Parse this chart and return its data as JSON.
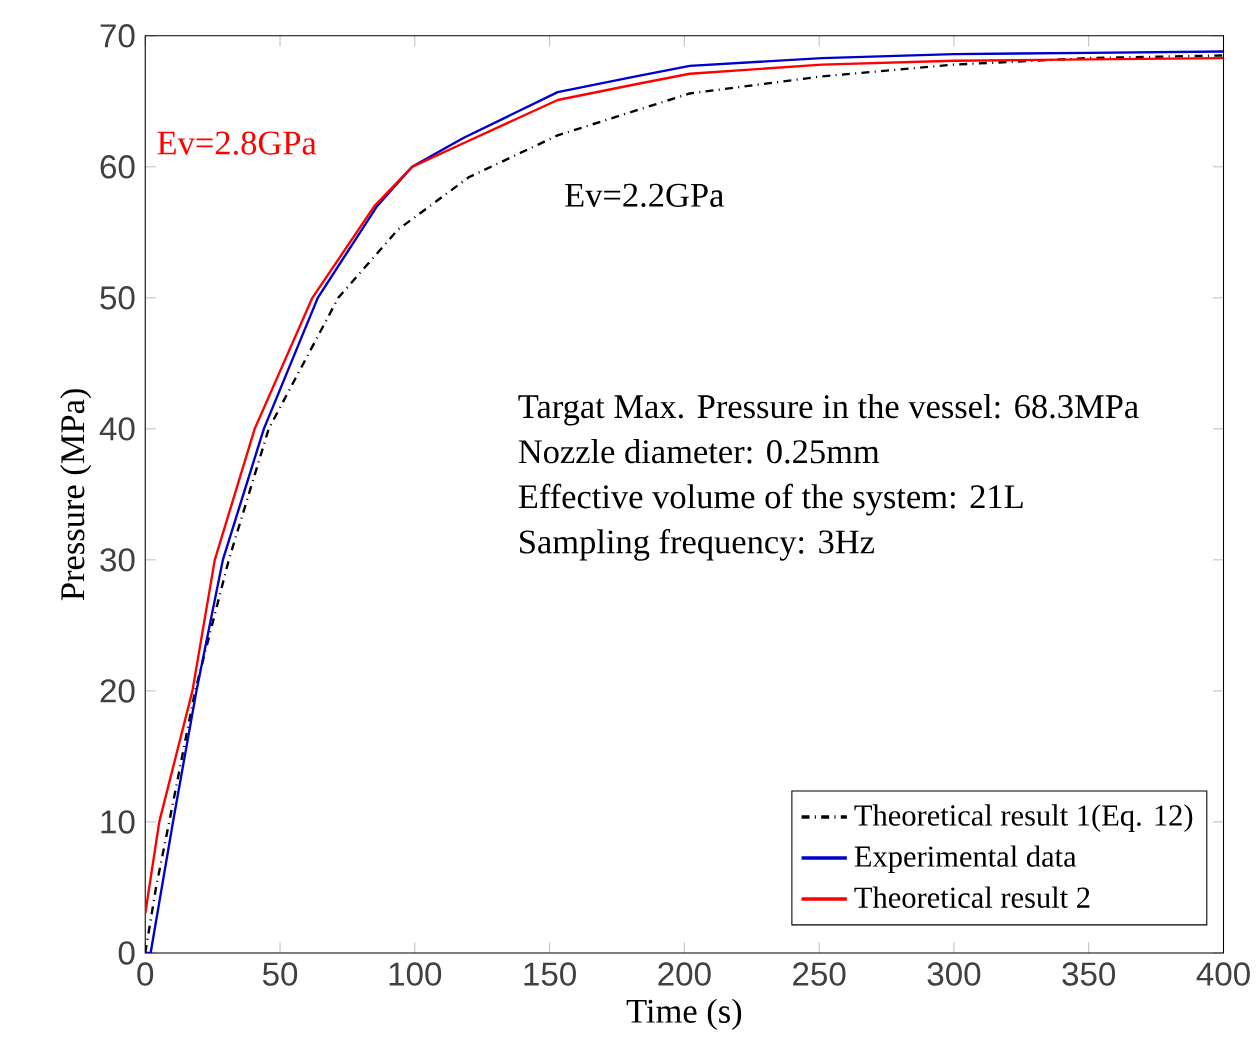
{
  "chart_data": {
    "type": "line",
    "xlabel": "Time (s)",
    "ylabel": "Pressure (MPa)",
    "xlim": [
      0,
      400
    ],
    "ylim": [
      0,
      70
    ],
    "xticks": [
      0,
      50,
      100,
      150,
      200,
      250,
      300,
      350,
      400
    ],
    "yticks": [
      0,
      10,
      20,
      30,
      40,
      50,
      60,
      70
    ],
    "grid": false,
    "legend": "bottom right",
    "marker": "none",
    "series": [
      {
        "name": "Theoretical result 1(Eq. 12)",
        "color": "#000000",
        "line_style": "dashdot",
        "x": [
          0,
          4,
          8.9,
          18.5,
          31,
          45.8,
          71.6,
          93.7,
          120,
          153,
          202,
          251,
          300,
          350,
          400
        ],
        "values": [
          0,
          5,
          10,
          20,
          30,
          40,
          50,
          55.2,
          59.2,
          62.4,
          65.6,
          66.9,
          67.8,
          68.3,
          68.5
        ]
      },
      {
        "name": "Experimental data",
        "color": "#0000cc",
        "line_style": "solid",
        "x": [
          0,
          2,
          10.3,
          19,
          28.8,
          44,
          64,
          86,
          99,
          118,
          153,
          182,
          202,
          251,
          300,
          350,
          400
        ],
        "values": [
          0,
          0,
          10,
          20,
          30,
          40,
          50,
          57,
          60,
          62.2,
          65.7,
          66.9,
          67.7,
          68.3,
          68.6,
          68.7,
          68.8
        ]
      },
      {
        "name": "Theoretical result 2",
        "color": "#ff0000",
        "line_style": "solid",
        "x": [
          0,
          5.2,
          17.5,
          25.8,
          40.6,
          62,
          85,
          99,
          118,
          153,
          182,
          202,
          251,
          300,
          350,
          400
        ],
        "values": [
          3,
          10,
          20,
          30,
          40,
          50,
          57,
          60,
          61.8,
          65.1,
          66.3,
          67.1,
          67.8,
          68.1,
          68.2,
          68.3
        ]
      }
    ],
    "annotations": [
      "Ev=2.8GPa",
      "Ev=2.2GPa",
      "Targat Max. Pressure in the vessel: 68.3MPa",
      "Nozzle diameter: 0.25mm",
      "Effective volume of the system: 21L",
      "Sampling frequency: 3Hz"
    ]
  }
}
